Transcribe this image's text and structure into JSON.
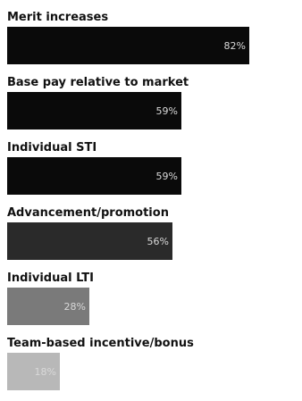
{
  "chart_data": {
    "type": "bar",
    "orientation": "horizontal",
    "categories": [
      "Merit increases",
      "Base pay relative to market",
      "Individual STI",
      "Advancement/promotion",
      "Individual LTI",
      "Team-based incentive/bonus"
    ],
    "values": [
      82,
      59,
      59,
      56,
      28,
      18
    ],
    "value_labels": [
      "82%",
      "59%",
      "59%",
      "56%",
      "28%",
      "18%"
    ],
    "bar_colors": [
      "#0a0a0a",
      "#0a0a0a",
      "#0a0a0a",
      "#2a2a2a",
      "#7a7a7a",
      "#b8b8b8"
    ],
    "xlim": [
      0,
      100
    ],
    "grid": false,
    "legend": false
  }
}
